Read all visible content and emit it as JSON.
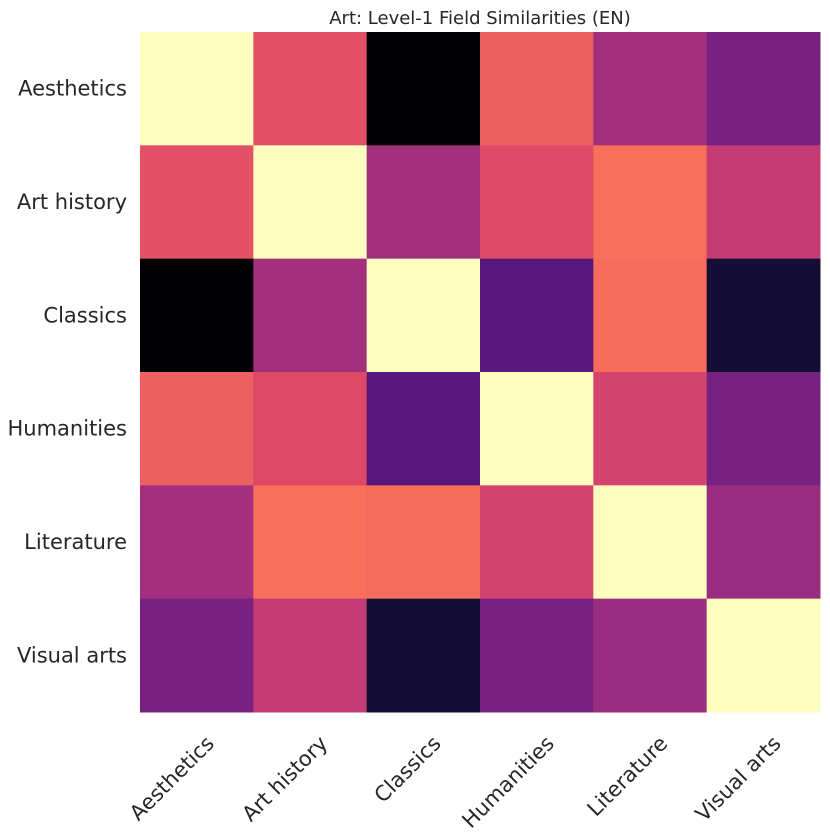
{
  "chart_data": {
    "type": "heatmap",
    "title": "Art: Level-1 Field Similarities (EN)",
    "colormap": "magma",
    "grid": false,
    "legend": "none",
    "xlabel": "",
    "ylabel": "",
    "x_categories": [
      "Aesthetics",
      "Art history",
      "Classics",
      "Humanities",
      "Literature",
      "Visual arts"
    ],
    "y_categories": [
      "Aesthetics",
      "Art history",
      "Classics",
      "Humanities",
      "Literature",
      "Visual arts"
    ],
    "value_range": [
      0.0,
      1.0
    ],
    "values": [
      [
        1.0,
        0.62,
        0.0,
        0.66,
        0.45,
        0.35
      ],
      [
        0.62,
        1.0,
        0.45,
        0.6,
        0.7,
        0.53
      ],
      [
        0.0,
        0.45,
        1.0,
        0.27,
        0.69,
        0.1
      ],
      [
        0.66,
        0.6,
        0.27,
        1.0,
        0.57,
        0.35
      ],
      [
        0.45,
        0.7,
        0.69,
        0.57,
        1.0,
        0.43
      ],
      [
        0.35,
        0.53,
        0.1,
        0.35,
        0.43,
        1.0
      ]
    ]
  }
}
